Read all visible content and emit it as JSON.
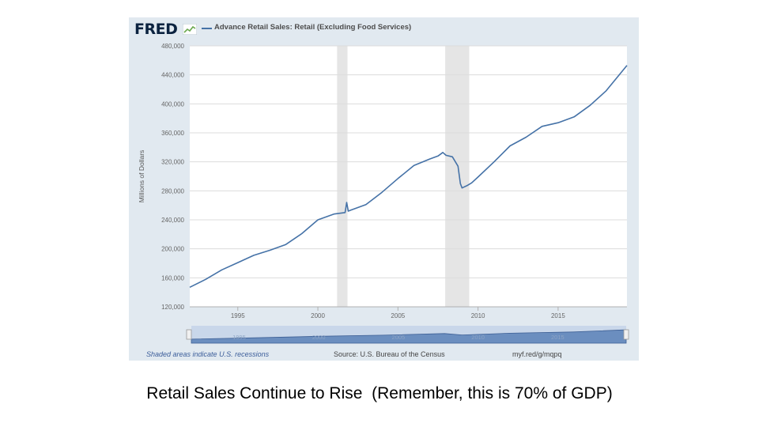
{
  "chart_data": {
    "type": "line",
    "title": "Advance Retail Sales: Retail (Excluding Food Services)",
    "brand": "FRED",
    "ylabel": "Millions of Dollars",
    "xlabel": "",
    "ylim": [
      120000,
      480000
    ],
    "xlim": [
      1992.0,
      2019.3
    ],
    "ytick_values": [
      120000,
      160000,
      200000,
      240000,
      280000,
      320000,
      360000,
      400000,
      440000,
      480000
    ],
    "ytick_labels": [
      "120,000",
      "160,000",
      "200,000",
      "240,000",
      "280,000",
      "320,000",
      "360,000",
      "400,000",
      "440,000",
      "480,000"
    ],
    "xtick_values": [
      1995,
      2000,
      2005,
      2010,
      2015
    ],
    "xtick_labels": [
      "1995",
      "2000",
      "2005",
      "2010",
      "2015"
    ],
    "navigator_labels": [
      "1995",
      "2000",
      "2005",
      "2010",
      "2015"
    ],
    "recessions": [
      [
        2001.2,
        2001.85
      ],
      [
        2007.95,
        2009.45
      ]
    ],
    "series": [
      {
        "name": "Advance Retail Sales: Retail (Excluding Food Services)",
        "color": "#4572a7",
        "x": [
          1992.0,
          1993.0,
          1994.0,
          1995.0,
          1996.0,
          1997.0,
          1998.0,
          1999.0,
          2000.0,
          2001.0,
          2001.7,
          2001.8,
          2001.9,
          2002.0,
          2003.0,
          2004.0,
          2005.0,
          2006.0,
          2007.0,
          2007.5,
          2007.8,
          2008.0,
          2008.4,
          2008.75,
          2008.9,
          2009.0,
          2009.3,
          2009.6,
          2010.0,
          2011.0,
          2012.0,
          2013.0,
          2014.0,
          2015.0,
          2016.0,
          2017.0,
          2018.0,
          2019.3
        ],
        "values": [
          147000,
          158000,
          171000,
          181000,
          191000,
          198000,
          206000,
          221000,
          240000,
          248000,
          250000,
          264000,
          252000,
          253000,
          261000,
          278000,
          297000,
          315000,
          324000,
          328000,
          333000,
          329000,
          327000,
          314000,
          290000,
          284000,
          287000,
          291000,
          299000,
          320000,
          342000,
          354000,
          369000,
          374000,
          382000,
          398000,
          418000,
          453000
        ]
      }
    ],
    "navigator_series": {
      "x": [
        1992.0,
        1996.0,
        2000.0,
        2004.0,
        2007.9,
        2009.0,
        2012.0,
        2016.0,
        2019.3
      ],
      "values": [
        147000,
        191000,
        240000,
        278000,
        330000,
        284000,
        342000,
        382000,
        453000
      ]
    }
  },
  "footer": {
    "recession_note": "Shaded areas indicate U.S. recessions",
    "source": "Source: U.S. Bureau of the Census",
    "url": "myf.red/g/mqpq"
  },
  "caption": "Retail Sales Continue to Rise  (Remember, this is 70% of GDP)"
}
